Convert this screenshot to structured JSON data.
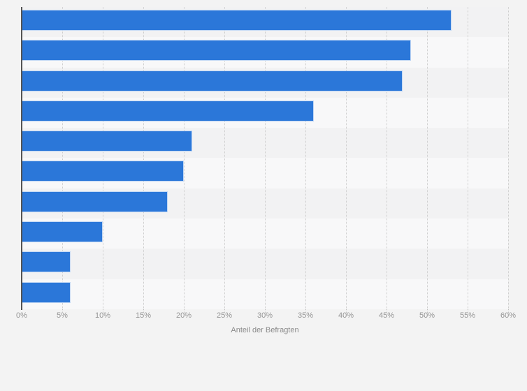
{
  "chart_data": {
    "type": "bar",
    "orientation": "horizontal",
    "title": "",
    "xlabel": "Anteil der Befragten",
    "ylabel": "",
    "categories": [
      "",
      "",
      "",
      "",
      "",
      "",
      "",
      "",
      "",
      ""
    ],
    "values": [
      53,
      48,
      47,
      36,
      21,
      20,
      18,
      10,
      6,
      6
    ],
    "value_unit": "%",
    "xlim": [
      0,
      60
    ],
    "tick_step": 5,
    "tick_labels": [
      "0%",
      "5%",
      "10%",
      "15%",
      "20%",
      "25%",
      "30%",
      "35%",
      "40%",
      "45%",
      "50%",
      "55%",
      "60%"
    ],
    "grid": "vertical-dotted",
    "legend": "none",
    "colors": {
      "bar": "#2b77d9",
      "bar_border": "rgba(255,255,255,0.7)",
      "background": "#f3f3f3",
      "row_band_odd": "#f2f2f3",
      "row_band_even": "#f8f8f9",
      "gridline": "#cdcdcd",
      "axis_line": "#545454",
      "tick_label": "#959595",
      "axis_title": "#8a8a8a"
    }
  }
}
